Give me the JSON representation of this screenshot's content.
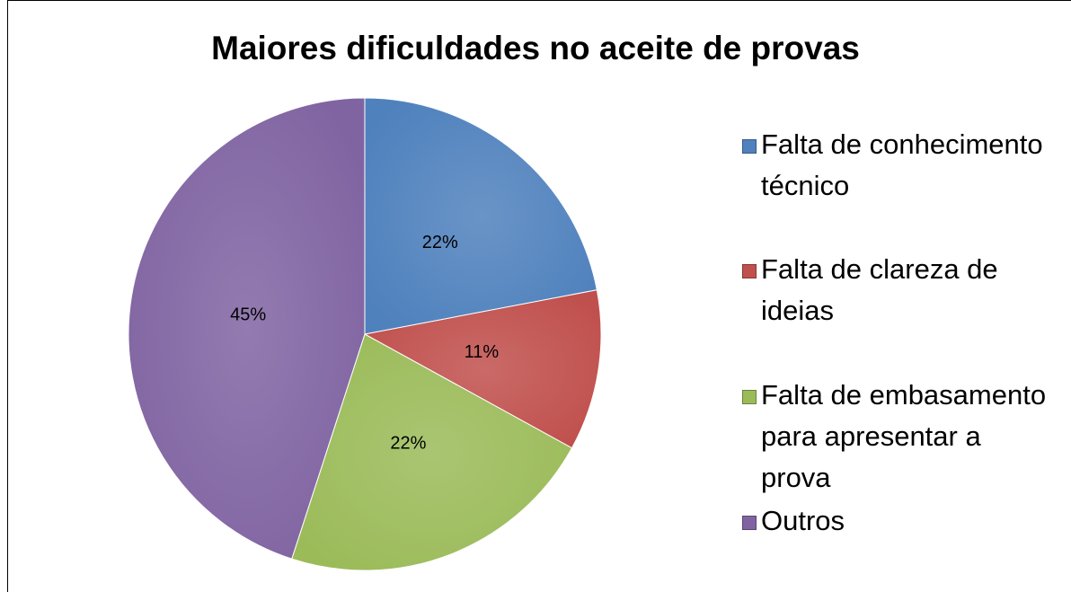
{
  "chart_data": {
    "type": "pie",
    "title": "Maiores dificuldades no aceite de provas",
    "categories": [
      "Falta de conhecimento técnico",
      "Falta de clareza de ideias",
      "Falta de embasamento para apresentar a prova",
      "Outros"
    ],
    "values": [
      22,
      11,
      22,
      45
    ],
    "value_labels": [
      "22%",
      "11%",
      "22%",
      "45%"
    ],
    "colors": [
      "#4f81bd",
      "#c0504d",
      "#9bbb59",
      "#8064a2"
    ],
    "legend": "right"
  }
}
